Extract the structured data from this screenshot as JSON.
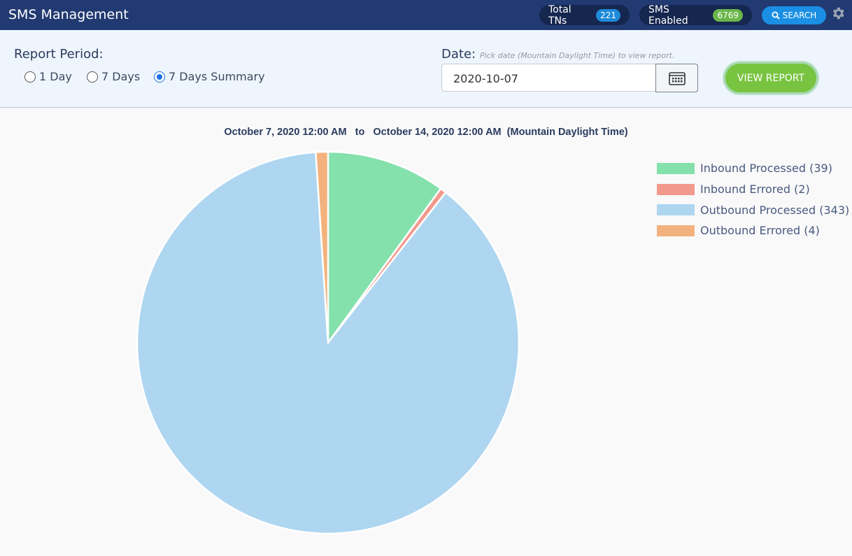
{
  "header": {
    "title": "SMS Management",
    "total_tns_label": "Total TNs",
    "total_tns_count": "221",
    "sms_enabled_label": "SMS Enabled",
    "sms_enabled_count": "6769",
    "search_label": "SEARCH",
    "search_icon": "search-icon",
    "settings_icon": "gear-icon"
  },
  "controls": {
    "report_period_label": "Report Period:",
    "options": [
      {
        "label": "1 Day",
        "checked": false
      },
      {
        "label": "7 Days",
        "checked": false
      },
      {
        "label": "7 Days Summary",
        "checked": true
      }
    ],
    "date_label": "Date:",
    "date_hint": "Pick date (Mountain Daylight Time) to view report.",
    "date_value": "2020-10-07",
    "calendar_icon": "calendar-icon",
    "view_report_label": "VIEW REPORT"
  },
  "colors": {
    "header_bg": "#223a72",
    "pill_bg": "#15264f",
    "tns_badge": "#1e8ad8",
    "sms_badge": "#6ab64a",
    "search_btn": "#1a8fe3",
    "view_btn": "#78c440"
  },
  "chart_data": {
    "type": "pie",
    "title": "October 7, 2020 12:00 AM   to   October 14, 2020 12:00 AM  (Mountain Daylight Time)",
    "legend_position": "top-right",
    "series": [
      {
        "name": "Inbound Processed (39)",
        "value": 39,
        "color": "#84e1ab"
      },
      {
        "name": "Inbound Errored (2)",
        "value": 2,
        "color": "#f1998d"
      },
      {
        "name": "Outbound Processed (343)",
        "value": 343,
        "color": "#afd6f0"
      },
      {
        "name": "Outbound Errored (4)",
        "value": 4,
        "color": "#f3b27d"
      }
    ]
  }
}
